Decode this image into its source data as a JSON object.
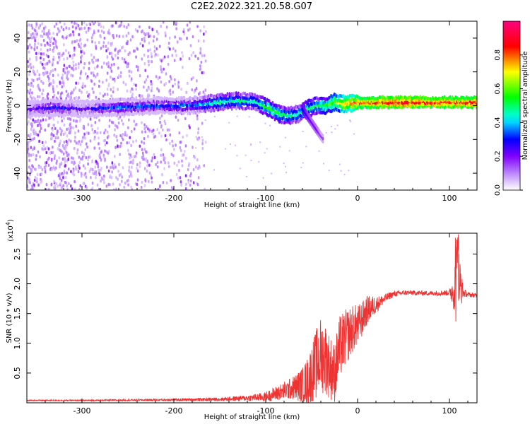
{
  "figure": {
    "title": "C2E2.2022.321.20.58.G07"
  },
  "chart_data": [
    {
      "type": "heatmap",
      "title": "C2E2.2022.321.20.58.G07",
      "xlabel": "Height of straight line (km)",
      "ylabel": "Frequency (Hz)",
      "xlim": [
        -360,
        130
      ],
      "ylim": [
        -50,
        50
      ],
      "x_ticks": [
        -300,
        -200,
        -100,
        0,
        100
      ],
      "x_tick_labels": [
        "-300",
        "-200",
        "-100",
        "0",
        "100"
      ],
      "y_ticks": [
        -40,
        -20,
        0,
        20,
        40
      ],
      "y_tick_labels": [
        "-40",
        "-20",
        "0",
        "20",
        "40"
      ],
      "colorbar": {
        "label": "Normalized spectral amplitude",
        "range": [
          0,
          1
        ],
        "ticks": [
          0.0,
          0.2,
          0.4,
          0.6,
          0.8
        ],
        "tick_labels": [
          "0.0",
          "0.2",
          "0.4",
          "0.6",
          "0.8"
        ],
        "colormap": [
          "#ffffff",
          "#8000ff",
          "#0000ff",
          "#00ffff",
          "#00ff00",
          "#ffff00",
          "#ff0000",
          "#ff0080"
        ]
      },
      "ridge": {
        "x": [
          -360,
          -330,
          -300,
          -260,
          -220,
          -180,
          -150,
          -130,
          -110,
          -95,
          -85,
          -75,
          -65,
          -55,
          -45,
          -35,
          -25,
          -15,
          0,
          20,
          50,
          80,
          100,
          130
        ],
        "freq": [
          -2,
          -1,
          -2,
          -1,
          0,
          0,
          2,
          3,
          2,
          -2,
          -5,
          -6,
          -5,
          -2,
          0,
          0,
          2,
          1,
          2,
          2,
          2,
          2,
          2,
          2
        ],
        "amplitude": [
          0.2,
          0.3,
          0.2,
          0.35,
          0.3,
          0.35,
          0.45,
          0.45,
          0.45,
          0.55,
          0.5,
          0.45,
          0.45,
          0.5,
          0.5,
          0.55,
          0.6,
          0.7,
          0.8,
          0.85,
          0.9,
          0.85,
          0.85,
          0.85
        ]
      },
      "secondary_ridge": {
        "x": [
          -60,
          -55,
          -50,
          -45,
          -40,
          -37
        ],
        "freq": [
          -2,
          -6,
          -10,
          -14,
          -18,
          -20
        ],
        "amplitude": [
          0.3,
          0.25,
          0.2,
          0.2,
          0.15,
          0.15
        ]
      },
      "noise_extent_x": [
        -360,
        -180
      ]
    },
    {
      "type": "line",
      "xlabel": "Height of straight line (km)",
      "ylabel": "SNR (10 * v/v)",
      "y_multiplier": "(x10",
      "y_multiplier_exp": "4",
      "y_multiplier_close": ")",
      "xlim": [
        -360,
        130
      ],
      "ylim": [
        0,
        2.85
      ],
      "x_ticks": [
        -300,
        -200,
        -100,
        0,
        100
      ],
      "x_tick_labels": [
        "-300",
        "-200",
        "-100",
        "0",
        "100"
      ],
      "y_ticks": [
        0.5,
        1.0,
        1.5,
        2.0,
        2.5
      ],
      "y_tick_labels": [
        "0.5",
        "1.0",
        "1.5",
        "2.0",
        "2.5"
      ],
      "series": [
        {
          "color": "#ee3333",
          "x": [
            -360,
            -300,
            -200,
            -150,
            -120,
            -100,
            -90,
            -80,
            -70,
            -60,
            -55,
            -50,
            -45,
            -40,
            -35,
            -30,
            -25,
            -20,
            -15,
            -10,
            -5,
            0,
            5,
            10,
            15,
            20,
            25,
            30,
            35,
            40,
            50,
            60,
            80,
            100,
            105,
            108,
            110,
            115,
            120,
            130
          ],
          "y": [
            0.04,
            0.04,
            0.05,
            0.06,
            0.08,
            0.1,
            0.15,
            0.2,
            0.25,
            0.3,
            0.35,
            0.5,
            0.65,
            0.8,
            0.75,
            0.6,
            0.5,
            0.9,
            1.05,
            1.15,
            1.25,
            1.3,
            1.4,
            1.55,
            1.6,
            1.65,
            1.7,
            1.75,
            1.8,
            1.83,
            1.85,
            1.85,
            1.84,
            1.85,
            1.9,
            2.0,
            2.05,
            1.85,
            1.82,
            1.8
          ],
          "noise": [
            0.01,
            0.01,
            0.02,
            0.03,
            0.05,
            0.08,
            0.12,
            0.15,
            0.2,
            0.3,
            0.4,
            0.5,
            0.6,
            0.65,
            0.6,
            0.55,
            0.5,
            0.55,
            0.5,
            0.45,
            0.4,
            0.35,
            0.3,
            0.25,
            0.2,
            0.15,
            0.1,
            0.08,
            0.06,
            0.05,
            0.04,
            0.04,
            0.04,
            0.05,
            0.35,
            0.8,
            0.6,
            0.08,
            0.04,
            0.04
          ]
        }
      ]
    }
  ]
}
